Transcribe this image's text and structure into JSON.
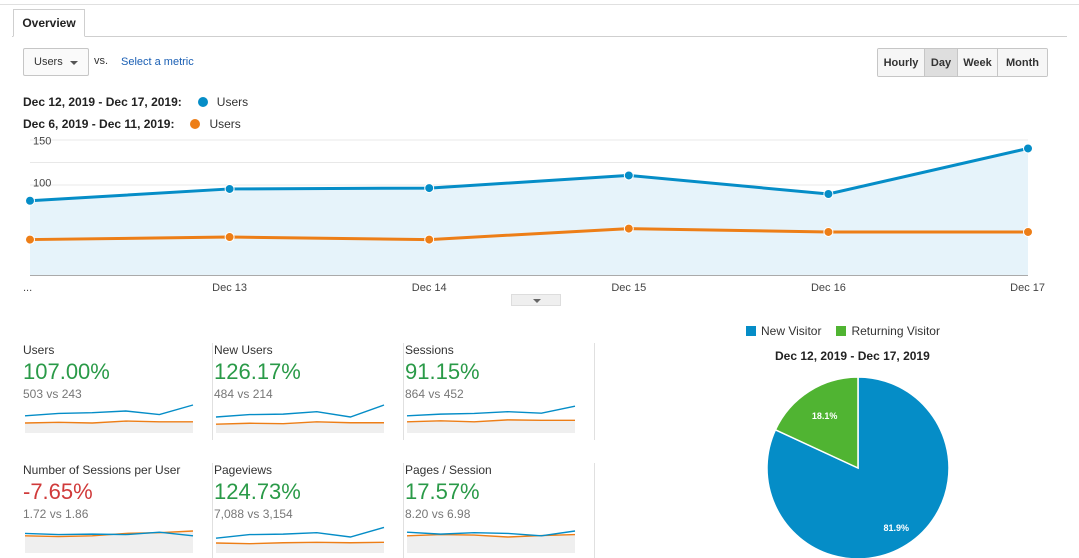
{
  "tabs": {
    "overview": "Overview"
  },
  "controls": {
    "metric_value": "Users",
    "vs_label": "vs.",
    "select_metric": "Select a metric",
    "granularity": [
      "Hourly",
      "Day",
      "Week",
      "Month"
    ],
    "granularity_selected": "Day"
  },
  "legend": [
    {
      "range": "Dec 12, 2019 - Dec 17, 2019:",
      "series": "Users",
      "color": "#058dc7"
    },
    {
      "range": "Dec 6, 2019 - Dec 11, 2019:",
      "series": "Users",
      "color": "#ed7e17"
    }
  ],
  "chart_data": [
    {
      "type": "line",
      "x": [
        "...",
        "Dec 13",
        "Dec 14",
        "Dec 15",
        "Dec 16",
        "Dec 17"
      ],
      "y_ticks": [
        50,
        100,
        150
      ],
      "ylim": [
        0,
        160
      ],
      "grid": true,
      "series": [
        {
          "name": "Users",
          "values": [
            88,
            102,
            103,
            118,
            96,
            150
          ],
          "color": "#058dc7",
          "area": true
        },
        {
          "name": "Users",
          "values": [
            42,
            45,
            42,
            55,
            51,
            51
          ],
          "color": "#ed7e17",
          "area": false
        }
      ]
    },
    {
      "type": "pie",
      "title": "Dec 12, 2019 - Dec 17, 2019",
      "legend": "top",
      "slices": [
        {
          "name": "New Visitor",
          "value": 81.9,
          "label": "81.9%",
          "color": "#058dc7"
        },
        {
          "name": "Returning Visitor",
          "value": 18.1,
          "label": "18.1%",
          "color": "#50b432"
        }
      ]
    }
  ],
  "scorecards": [
    {
      "name": "Users",
      "pct": "107.00%",
      "compare": "503 vs 243",
      "trend": "up",
      "spark": {
        "blue": [
          0.55,
          0.65,
          0.68,
          0.75,
          0.6,
          1.0
        ],
        "orange": [
          0.25,
          0.28,
          0.25,
          0.33,
          0.3,
          0.3
        ]
      }
    },
    {
      "name": "New Users",
      "pct": "126.17%",
      "compare": "484 vs 214",
      "trend": "up",
      "spark": {
        "blue": [
          0.5,
          0.6,
          0.62,
          0.72,
          0.5,
          1.0
        ],
        "orange": [
          0.2,
          0.24,
          0.22,
          0.3,
          0.26,
          0.26
        ]
      }
    },
    {
      "name": "Sessions",
      "pct": "91.15%",
      "compare": "864 vs 452",
      "trend": "up",
      "spark": {
        "blue": [
          0.55,
          0.62,
          0.65,
          0.72,
          0.66,
          0.95
        ],
        "orange": [
          0.3,
          0.34,
          0.3,
          0.38,
          0.36,
          0.36
        ]
      }
    },
    {
      "name": "Number of Sessions per User",
      "pct": "-7.65%",
      "compare": "1.72 vs 1.86",
      "trend": "down",
      "spark": {
        "blue": [
          0.65,
          0.6,
          0.62,
          0.6,
          0.7,
          0.55
        ],
        "orange": [
          0.55,
          0.52,
          0.55,
          0.65,
          0.68,
          0.75
        ]
      }
    },
    {
      "name": "Pageviews",
      "pct": "124.73%",
      "compare": "7,088 vs 3,154",
      "trend": "up",
      "spark": {
        "blue": [
          0.45,
          0.6,
          0.62,
          0.68,
          0.5,
          0.9
        ],
        "orange": [
          0.25,
          0.22,
          0.26,
          0.28,
          0.26,
          0.28
        ]
      }
    },
    {
      "name": "Pages / Session",
      "pct": "17.57%",
      "compare": "8.20 vs 6.98",
      "trend": "up",
      "spark": {
        "blue": [
          0.7,
          0.62,
          0.68,
          0.65,
          0.55,
          0.75
        ],
        "orange": [
          0.55,
          0.6,
          0.58,
          0.5,
          0.56,
          0.6
        ]
      }
    }
  ],
  "colors": {
    "blue": "#058dc7",
    "orange": "#ed7e17",
    "green": "#50b432",
    "positive": "#2a9a48",
    "negative": "#d03a3a",
    "area_fill": "#e6f3fa",
    "grid": "#e8e8e8"
  }
}
